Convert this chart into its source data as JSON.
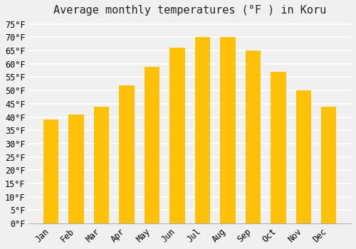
{
  "months": [
    "Jan",
    "Feb",
    "Mar",
    "Apr",
    "May",
    "Jun",
    "Jul",
    "Aug",
    "Sep",
    "Oct",
    "Nov",
    "Dec"
  ],
  "temperatures": [
    39,
    41,
    44,
    52,
    59,
    66,
    70,
    70,
    65,
    57,
    50,
    44
  ],
  "bar_color_top": "#FFC107",
  "bar_color_bottom": "#FFB300",
  "title": "Average monthly temperatures (°F ) in Koru",
  "ylabel": "",
  "ylim_min": 0,
  "ylim_max": 75,
  "ytick_step": 5,
  "background_color": "#f0f0f0",
  "grid_color": "#ffffff",
  "title_fontsize": 11,
  "tick_fontsize": 8.5,
  "font_family": "monospace"
}
